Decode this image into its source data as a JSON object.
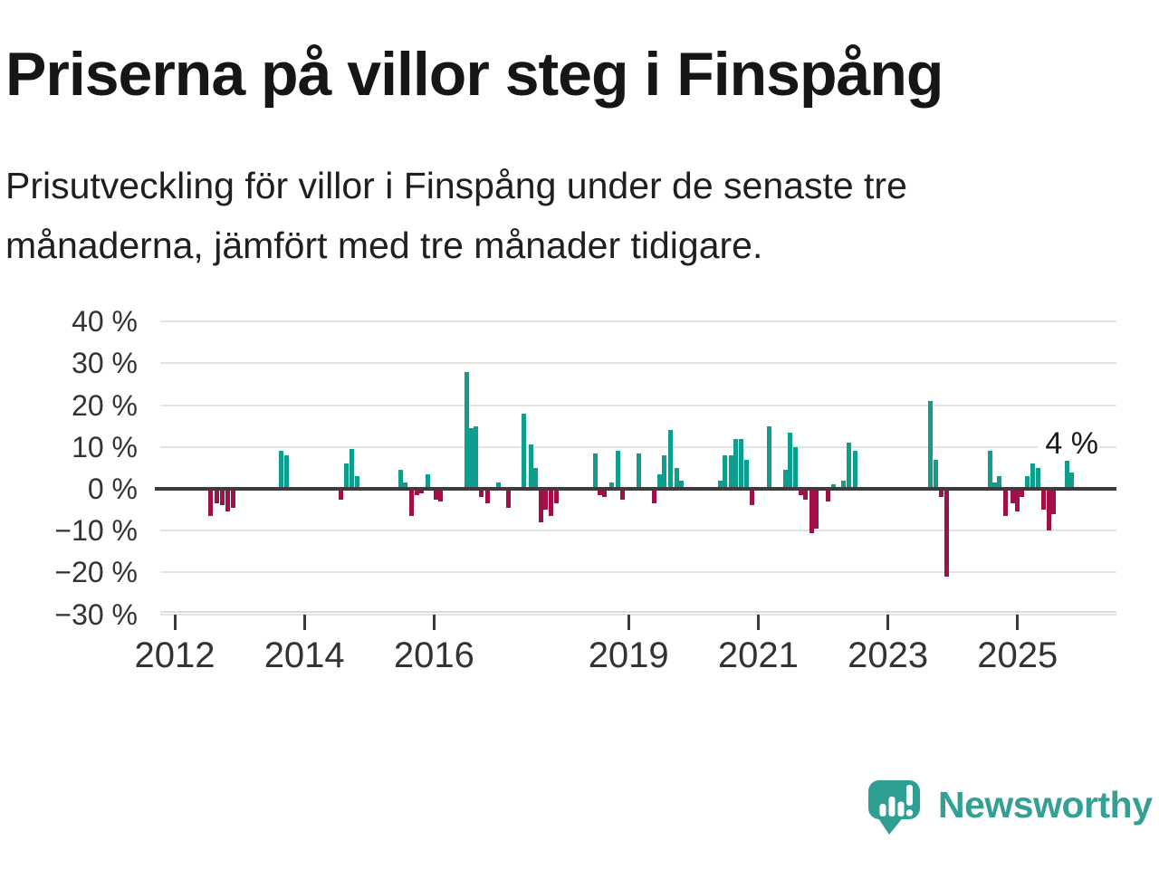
{
  "header": {
    "title": "Priserna på villor steg i Finspång",
    "subtitle_line1": "Prisutveckling för villor i Finspång under de senaste tre",
    "subtitle_line2": "månaderna, jämfört med tre månader tidigare."
  },
  "chart_data": {
    "type": "bar",
    "title": "Priserna på villor steg i Finspång",
    "xlabel": "",
    "ylabel": "",
    "unit": "%",
    "ylim": [
      -30,
      40
    ],
    "grid": "horizontal",
    "annotation": "4 %",
    "last_value_pct": 4,
    "colors": {
      "positive": "#0d9e8e",
      "negative": "#a11149"
    },
    "y_ticks": [
      {
        "v": 40,
        "label": "40 %"
      },
      {
        "v": 30,
        "label": "30 %"
      },
      {
        "v": 20,
        "label": "20 %"
      },
      {
        "v": 10,
        "label": "10 %"
      },
      {
        "v": 0,
        "label": "0 %"
      },
      {
        "v": -10,
        "label": "−10 %"
      },
      {
        "v": -20,
        "label": "−20 %"
      },
      {
        "v": -30,
        "label": "−30 %"
      }
    ],
    "x_ticks": [
      {
        "year": 2012,
        "label": "2012"
      },
      {
        "year": 2014,
        "label": "2014"
      },
      {
        "year": 2016,
        "label": "2016"
      },
      {
        "year": 2019,
        "label": "2019"
      },
      {
        "year": 2021,
        "label": "2021"
      },
      {
        "year": 2023,
        "label": "2023"
      },
      {
        "year": 2025,
        "label": "2025"
      }
    ],
    "bars": [
      [
        2012.55,
        -6.5
      ],
      [
        2012.65,
        -3.5
      ],
      [
        2012.73,
        -4
      ],
      [
        2012.82,
        -5.5
      ],
      [
        2012.9,
        -4.5
      ],
      [
        2013.64,
        9
      ],
      [
        2013.72,
        8
      ],
      [
        2014.56,
        -2.5
      ],
      [
        2014.64,
        6
      ],
      [
        2014.73,
        9.5
      ],
      [
        2014.81,
        3
      ],
      [
        2015.48,
        4.5
      ],
      [
        2015.56,
        1.5
      ],
      [
        2015.65,
        -6.5
      ],
      [
        2015.73,
        -1.5
      ],
      [
        2015.81,
        -1
      ],
      [
        2015.9,
        3.5
      ],
      [
        2016.03,
        -2.5
      ],
      [
        2016.1,
        -3
      ],
      [
        2016.51,
        28
      ],
      [
        2016.58,
        14.5
      ],
      [
        2016.65,
        15
      ],
      [
        2016.73,
        -2
      ],
      [
        2016.82,
        -3.5
      ],
      [
        2016.99,
        1.5
      ],
      [
        2017.14,
        -4.5
      ],
      [
        2017.39,
        18
      ],
      [
        2017.5,
        10.5
      ],
      [
        2017.57,
        5
      ],
      [
        2017.65,
        -8
      ],
      [
        2017.72,
        -5
      ],
      [
        2017.81,
        -6.5
      ],
      [
        2017.88,
        -3.5
      ],
      [
        2018.49,
        8.5
      ],
      [
        2018.56,
        -1.5
      ],
      [
        2018.63,
        -2
      ],
      [
        2018.74,
        1.5
      ],
      [
        2018.83,
        9
      ],
      [
        2018.9,
        -2.5
      ],
      [
        2019.16,
        8.5
      ],
      [
        2019.39,
        -3.5
      ],
      [
        2019.48,
        3.5
      ],
      [
        2019.55,
        8
      ],
      [
        2019.65,
        14
      ],
      [
        2019.74,
        5
      ],
      [
        2019.81,
        2
      ],
      [
        2020.41,
        2
      ],
      [
        2020.49,
        8
      ],
      [
        2020.58,
        8
      ],
      [
        2020.65,
        12
      ],
      [
        2020.73,
        12
      ],
      [
        2020.82,
        7
      ],
      [
        2020.9,
        -4
      ],
      [
        2021.17,
        15
      ],
      [
        2021.42,
        4.5
      ],
      [
        2021.49,
        13.5
      ],
      [
        2021.57,
        10
      ],
      [
        2021.66,
        -1.5
      ],
      [
        2021.73,
        -2.5
      ],
      [
        2021.82,
        -10.5
      ],
      [
        2021.9,
        -9.5
      ],
      [
        2022.07,
        -3
      ],
      [
        2022.16,
        1
      ],
      [
        2022.32,
        2
      ],
      [
        2022.4,
        11
      ],
      [
        2022.5,
        9
      ],
      [
        2023.65,
        21
      ],
      [
        2023.74,
        7
      ],
      [
        2023.82,
        -2
      ],
      [
        2023.9,
        -21
      ],
      [
        2024.57,
        9
      ],
      [
        2024.64,
        1.5
      ],
      [
        2024.72,
        3
      ],
      [
        2024.82,
        -6.5
      ],
      [
        2024.92,
        -3.5
      ],
      [
        2024.99,
        -5.5
      ],
      [
        2025.06,
        -2
      ],
      [
        2025.15,
        3
      ],
      [
        2025.24,
        6
      ],
      [
        2025.32,
        5
      ],
      [
        2025.4,
        -5
      ],
      [
        2025.48,
        -10
      ],
      [
        2025.56,
        -6
      ],
      [
        2025.76,
        9
      ],
      [
        2025.84,
        4
      ]
    ]
  },
  "footer": {
    "brand": "Newsworthy",
    "logo_icon": "newsworthy-speech-bubble-bar-chart-icon",
    "brand_color": "#34a094"
  }
}
